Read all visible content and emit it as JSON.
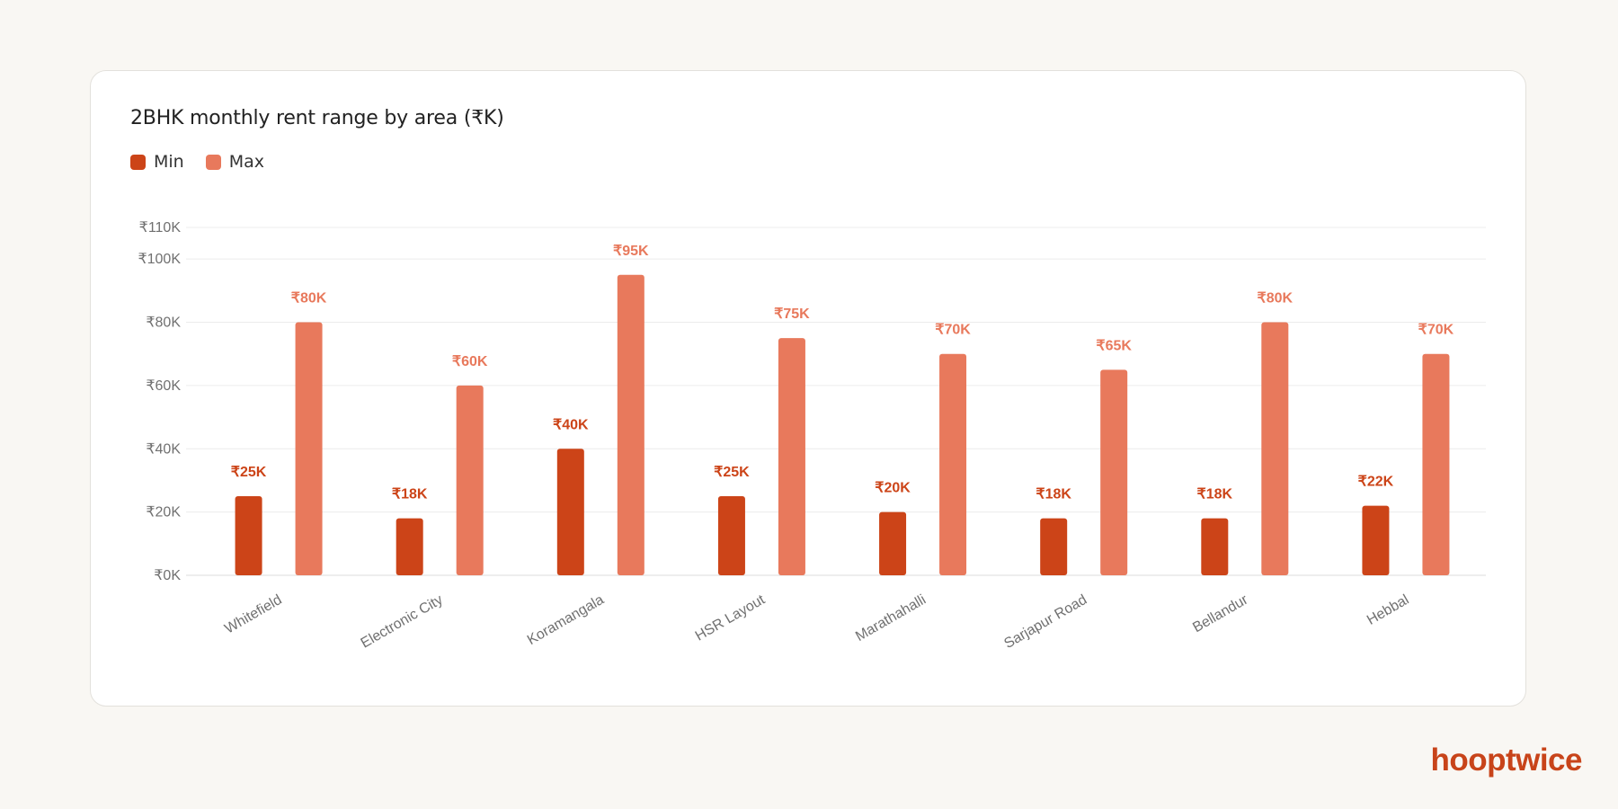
{
  "brand": {
    "name": "hooptwice",
    "color": "#c8441a"
  },
  "colors": {
    "min": "#cc4418",
    "max": "#e8795c",
    "grid": "#ececec",
    "axis_text": "#707070"
  },
  "chart_data": {
    "type": "bar",
    "title": "2BHK monthly rent range by area (₹K)",
    "categories": [
      "Whitefield",
      "Electronic City",
      "Koramangala",
      "HSR Layout",
      "Marathahalli",
      "Sarjapur Road",
      "Bellandur",
      "Hebbal"
    ],
    "series": [
      {
        "name": "Min",
        "values": [
          25,
          18,
          40,
          25,
          20,
          18,
          18,
          22
        ]
      },
      {
        "name": "Max",
        "values": [
          80,
          60,
          95,
          75,
          70,
          65,
          80,
          70
        ]
      }
    ],
    "yticks": [
      0,
      20,
      40,
      60,
      80,
      100,
      110
    ],
    "ytick_labels": [
      "₹0K",
      "₹20K",
      "₹40K",
      "₹60K",
      "₹80K",
      "₹100K",
      "₹110K"
    ],
    "value_labels": {
      "Min": [
        "₹25K",
        "₹18K",
        "₹40K",
        "₹25K",
        "₹20K",
        "₹18K",
        "₹18K",
        "₹22K"
      ],
      "Max": [
        "₹80K",
        "₹60K",
        "₹95K",
        "₹75K",
        "₹70K",
        "₹65K",
        "₹80K",
        "₹70K"
      ]
    },
    "ylim": [
      0,
      110
    ],
    "grid": true,
    "legend": "top-left"
  }
}
